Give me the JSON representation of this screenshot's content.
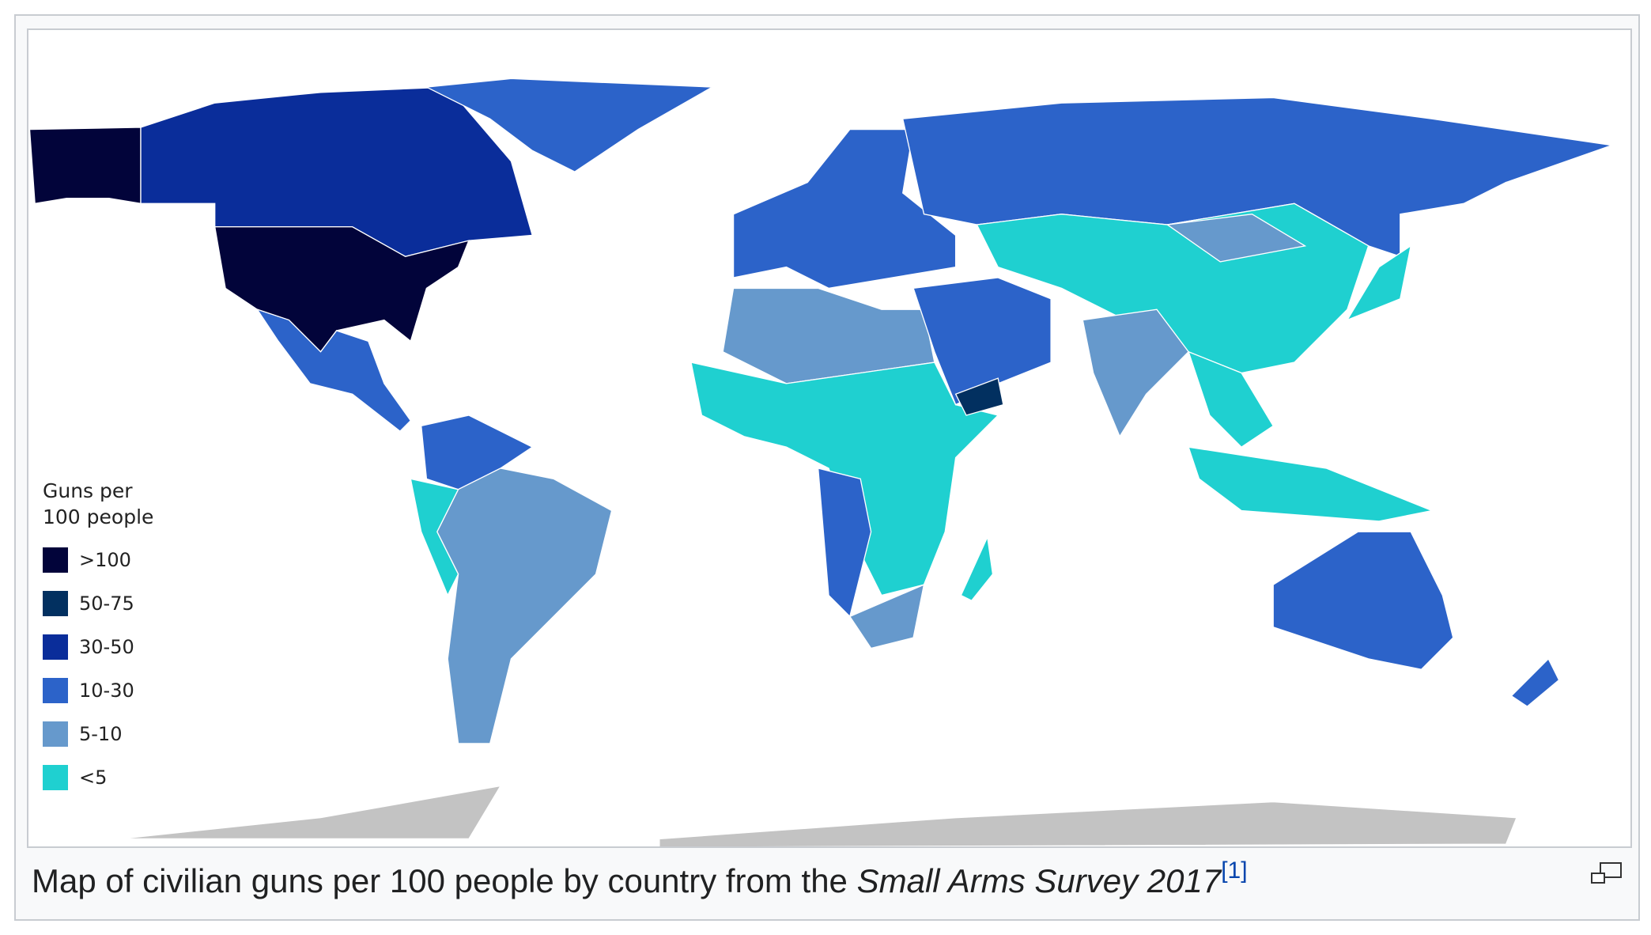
{
  "legend": {
    "title": [
      "Guns per",
      "100 people"
    ],
    "items": [
      {
        "label": ">100",
        "color": "#02043a"
      },
      {
        "label": "50-75",
        "color": "#023060"
      },
      {
        "label": "30-50",
        "color": "#0a2d9a"
      },
      {
        "label": "10-30",
        "color": "#2c63c9"
      },
      {
        "label": "5-10",
        "color": "#6699cc"
      },
      {
        "label": "<5",
        "color": "#1fd0d0"
      }
    ]
  },
  "caption": {
    "text": "Map of civilian guns per 100 people by country from the ",
    "source": "Small Arms Survey 2017",
    "reference": "[1]"
  }
}
